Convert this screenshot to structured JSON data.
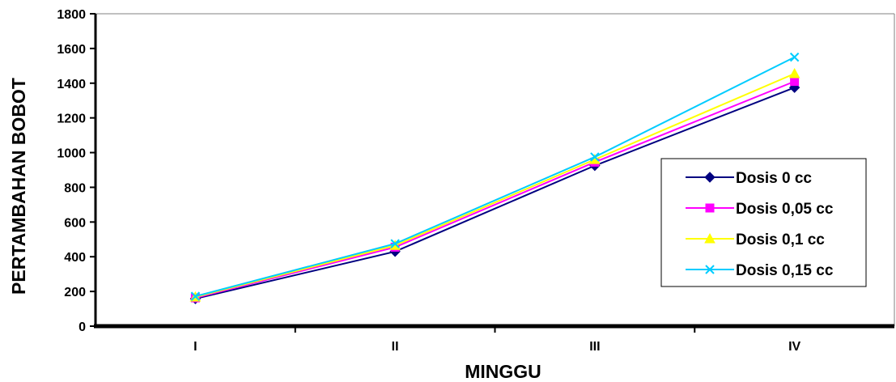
{
  "chart_data": {
    "type": "line",
    "title": "",
    "xlabel": "MINGGU",
    "ylabel": "PERTAMBAHAN BOBOT",
    "categories": [
      "I",
      "II",
      "III",
      "IV"
    ],
    "ylim": [
      0,
      1800
    ],
    "yticks": [
      "0",
      "200",
      "400",
      "600",
      "800",
      "1000",
      "1200",
      "1400",
      "1600",
      "1800"
    ],
    "grid": false,
    "legend_position": "right",
    "series": [
      {
        "name": "Dosis 0 cc",
        "values": [
          158,
          430,
          925,
          1375
        ],
        "color": "#000080",
        "marker": "diamond"
      },
      {
        "name": "Dosis 0,05 cc",
        "values": [
          163,
          455,
          945,
          1410
        ],
        "color": "#FF00FF",
        "marker": "square"
      },
      {
        "name": "Dosis 0,1 cc",
        "values": [
          168,
          465,
          960,
          1455
        ],
        "color": "#FFFF00",
        "marker": "triangle"
      },
      {
        "name": "Dosis 0,15 cc",
        "values": [
          172,
          475,
          975,
          1550
        ],
        "color": "#00CCFF",
        "marker": "x"
      }
    ]
  }
}
